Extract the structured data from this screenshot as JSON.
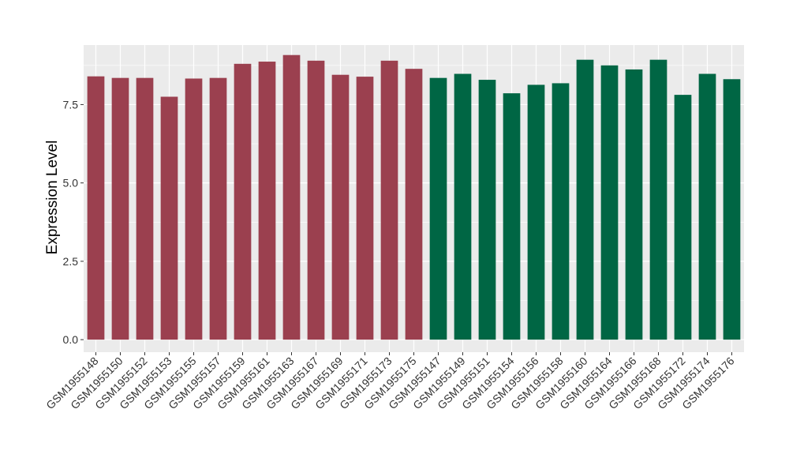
{
  "chart_data": {
    "type": "bar",
    "ylabel": "Expression Level",
    "xlabel": "",
    "ylim": [
      -0.4,
      9.4
    ],
    "yticks": [
      0.0,
      2.5,
      5.0,
      7.5
    ],
    "ytick_labels": [
      "0.0",
      "2.5",
      "5.0",
      "7.5"
    ],
    "grid": true,
    "panel_background": "#EBEBEB",
    "grid_color": "#FFFFFF",
    "group_colors": {
      "group1": "#9B404F",
      "group2": "#006644"
    },
    "categories": [
      "GSM1955148",
      "GSM1955150",
      "GSM1955152",
      "GSM1955153",
      "GSM1955155",
      "GSM1955157",
      "GSM1955159",
      "GSM1955161",
      "GSM1955163",
      "GSM1955167",
      "GSM1955169",
      "GSM1955171",
      "GSM1955173",
      "GSM1955175",
      "GSM1955147",
      "GSM1955149",
      "GSM1955151",
      "GSM1955154",
      "GSM1955156",
      "GSM1955158",
      "GSM1955160",
      "GSM1955164",
      "GSM1955166",
      "GSM1955168",
      "GSM1955172",
      "GSM1955174",
      "GSM1955176"
    ],
    "values": [
      8.4,
      8.35,
      8.35,
      7.75,
      8.33,
      8.35,
      8.8,
      8.87,
      9.08,
      8.9,
      8.45,
      8.39,
      8.9,
      8.64,
      8.35,
      8.48,
      8.29,
      7.86,
      8.13,
      8.18,
      8.93,
      8.75,
      8.62,
      8.93,
      7.81,
      8.48,
      8.31
    ],
    "groups": [
      "group1",
      "group1",
      "group1",
      "group1",
      "group1",
      "group1",
      "group1",
      "group1",
      "group1",
      "group1",
      "group1",
      "group1",
      "group1",
      "group1",
      "group2",
      "group2",
      "group2",
      "group2",
      "group2",
      "group2",
      "group2",
      "group2",
      "group2",
      "group2",
      "group2",
      "group2",
      "group2"
    ]
  }
}
